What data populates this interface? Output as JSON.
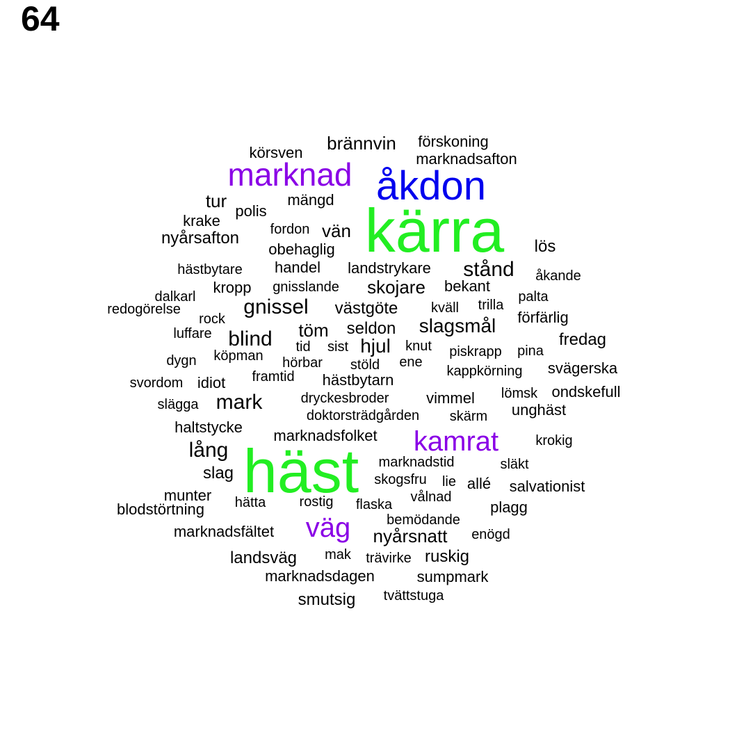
{
  "page_number": "64",
  "colors": {
    "green": "#22ee22",
    "blue": "#0000ee",
    "purple": "#8a00e6",
    "black": "#000000"
  },
  "words": [
    {
      "text": "kärra",
      "color": "green"
    },
    {
      "text": "häst",
      "color": "green"
    },
    {
      "text": "åkdon",
      "color": "blue"
    },
    {
      "text": "marknad",
      "color": "purple"
    },
    {
      "text": "kamrat",
      "color": "purple"
    },
    {
      "text": "väg",
      "color": "purple"
    },
    {
      "text": "brännvin",
      "color": "black"
    },
    {
      "text": "förskoning",
      "color": "black"
    },
    {
      "text": "körsven",
      "color": "black"
    },
    {
      "text": "marknadsafton",
      "color": "black"
    },
    {
      "text": "tur",
      "color": "black"
    },
    {
      "text": "mängd",
      "color": "black"
    },
    {
      "text": "polis",
      "color": "black"
    },
    {
      "text": "krake",
      "color": "black"
    },
    {
      "text": "fordon",
      "color": "black"
    },
    {
      "text": "vän",
      "color": "black"
    },
    {
      "text": "nyårsafton",
      "color": "black"
    },
    {
      "text": "obehaglig",
      "color": "black"
    },
    {
      "text": "lös",
      "color": "black"
    },
    {
      "text": "hästbytare",
      "color": "black"
    },
    {
      "text": "handel",
      "color": "black"
    },
    {
      "text": "landstrykare",
      "color": "black"
    },
    {
      "text": "stånd",
      "color": "black"
    },
    {
      "text": "åkande",
      "color": "black"
    },
    {
      "text": "kropp",
      "color": "black"
    },
    {
      "text": "gnisslande",
      "color": "black"
    },
    {
      "text": "skojare",
      "color": "black"
    },
    {
      "text": "bekant",
      "color": "black"
    },
    {
      "text": "dalkarl",
      "color": "black"
    },
    {
      "text": "palta",
      "color": "black"
    },
    {
      "text": "redogörelse",
      "color": "black"
    },
    {
      "text": "gnissel",
      "color": "black"
    },
    {
      "text": "västgöte",
      "color": "black"
    },
    {
      "text": "kväll",
      "color": "black"
    },
    {
      "text": "trilla",
      "color": "black"
    },
    {
      "text": "rock",
      "color": "black"
    },
    {
      "text": "förfärlig",
      "color": "black"
    },
    {
      "text": "luffare",
      "color": "black"
    },
    {
      "text": "töm",
      "color": "black"
    },
    {
      "text": "seldon",
      "color": "black"
    },
    {
      "text": "slagsmål",
      "color": "black"
    },
    {
      "text": "blind",
      "color": "black"
    },
    {
      "text": "fredag",
      "color": "black"
    },
    {
      "text": "tid",
      "color": "black"
    },
    {
      "text": "sist",
      "color": "black"
    },
    {
      "text": "hjul",
      "color": "black"
    },
    {
      "text": "knut",
      "color": "black"
    },
    {
      "text": "piskrapp",
      "color": "black"
    },
    {
      "text": "pina",
      "color": "black"
    },
    {
      "text": "dygn",
      "color": "black"
    },
    {
      "text": "köpman",
      "color": "black"
    },
    {
      "text": "hörbar",
      "color": "black"
    },
    {
      "text": "stöld",
      "color": "black"
    },
    {
      "text": "ene",
      "color": "black"
    },
    {
      "text": "kappkörning",
      "color": "black"
    },
    {
      "text": "svägerska",
      "color": "black"
    },
    {
      "text": "svordom",
      "color": "black"
    },
    {
      "text": "idiot",
      "color": "black"
    },
    {
      "text": "framtid",
      "color": "black"
    },
    {
      "text": "hästbytarn",
      "color": "black"
    },
    {
      "text": "lömsk",
      "color": "black"
    },
    {
      "text": "ondskefull",
      "color": "black"
    },
    {
      "text": "slägga",
      "color": "black"
    },
    {
      "text": "mark",
      "color": "black"
    },
    {
      "text": "dryckesbroder",
      "color": "black"
    },
    {
      "text": "vimmel",
      "color": "black"
    },
    {
      "text": "unghäst",
      "color": "black"
    },
    {
      "text": "doktorsträdgården",
      "color": "black"
    },
    {
      "text": "skärm",
      "color": "black"
    },
    {
      "text": "haltstycke",
      "color": "black"
    },
    {
      "text": "marknadsfolket",
      "color": "black"
    },
    {
      "text": "krokig",
      "color": "black"
    },
    {
      "text": "lång",
      "color": "black"
    },
    {
      "text": "marknadstid",
      "color": "black"
    },
    {
      "text": "släkt",
      "color": "black"
    },
    {
      "text": "slag",
      "color": "black"
    },
    {
      "text": "skogsfru",
      "color": "black"
    },
    {
      "text": "lie",
      "color": "black"
    },
    {
      "text": "allé",
      "color": "black"
    },
    {
      "text": "salvationist",
      "color": "black"
    },
    {
      "text": "munter",
      "color": "black"
    },
    {
      "text": "vålnad",
      "color": "black"
    },
    {
      "text": "hätta",
      "color": "black"
    },
    {
      "text": "rostig",
      "color": "black"
    },
    {
      "text": "flaska",
      "color": "black"
    },
    {
      "text": "blodstörtning",
      "color": "black"
    },
    {
      "text": "plagg",
      "color": "black"
    },
    {
      "text": "bemödande",
      "color": "black"
    },
    {
      "text": "marknadsfältet",
      "color": "black"
    },
    {
      "text": "nyårsnatt",
      "color": "black"
    },
    {
      "text": "enögd",
      "color": "black"
    },
    {
      "text": "landsväg",
      "color": "black"
    },
    {
      "text": "mak",
      "color": "black"
    },
    {
      "text": "trävirke",
      "color": "black"
    },
    {
      "text": "ruskig",
      "color": "black"
    },
    {
      "text": "marknadsdagen",
      "color": "black"
    },
    {
      "text": "sumpmark",
      "color": "black"
    },
    {
      "text": "smutsig",
      "color": "black"
    },
    {
      "text": "tvättstuga",
      "color": "black"
    }
  ]
}
